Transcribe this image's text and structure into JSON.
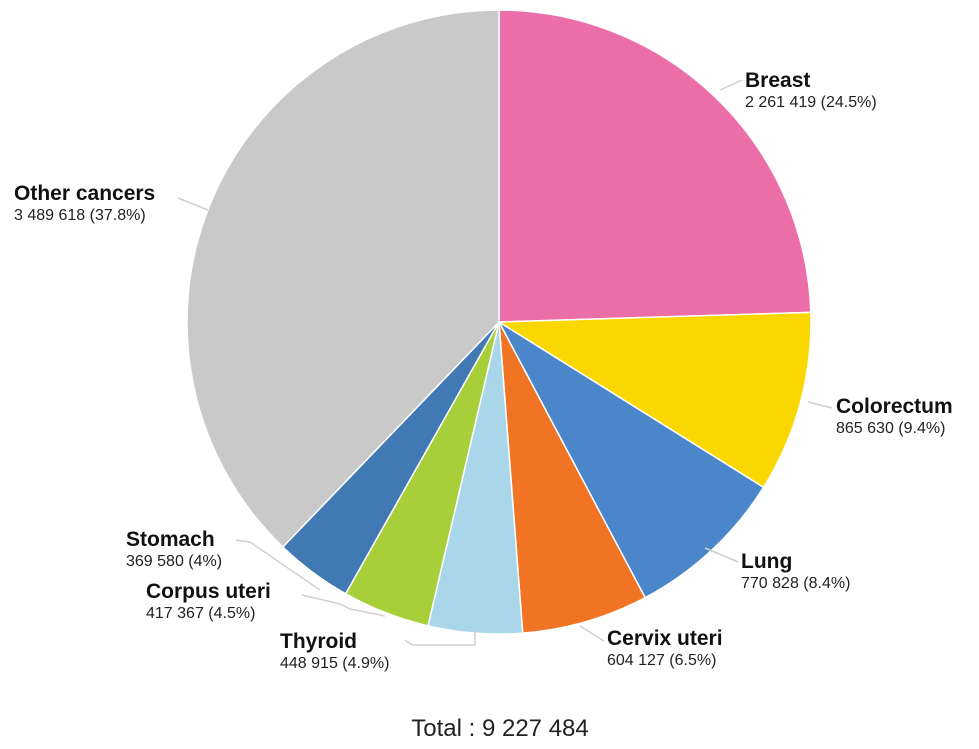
{
  "chart_data": {
    "type": "pie",
    "title": "",
    "total_label": "Total : 9 227 484",
    "slices": [
      {
        "name": "Breast",
        "value": 2261419,
        "value_label": "2 261 419 (24.5%)",
        "percent": 24.5,
        "color": "#ec6ea9"
      },
      {
        "name": "Colorectum",
        "value": 865630,
        "value_label": "865 630 (9.4%)",
        "percent": 9.4,
        "color": "#fad700"
      },
      {
        "name": "Lung",
        "value": 770828,
        "value_label": "770 828 (8.4%)",
        "percent": 8.4,
        "color": "#4a86c9"
      },
      {
        "name": "Cervix uteri",
        "value": 604127,
        "value_label": "604 127 (6.5%)",
        "percent": 6.5,
        "color": "#f07423"
      },
      {
        "name": "Thyroid",
        "value": 448915,
        "value_label": "448 915 (4.9%)",
        "percent": 4.9,
        "color": "#a9d6e8"
      },
      {
        "name": "Corpus uteri",
        "value": 417367,
        "value_label": "417 367 (4.5%)",
        "percent": 4.5,
        "color": "#a6cf3a"
      },
      {
        "name": "Stomach",
        "value": 369580,
        "value_label": "369 580 (4%)",
        "percent": 4.0,
        "color": "#4179b4"
      },
      {
        "name": "Other cancers",
        "value": 3489618,
        "value_label": "3 489 618 (37.8%)",
        "percent": 37.8,
        "color": "#c9c9c9"
      }
    ]
  }
}
